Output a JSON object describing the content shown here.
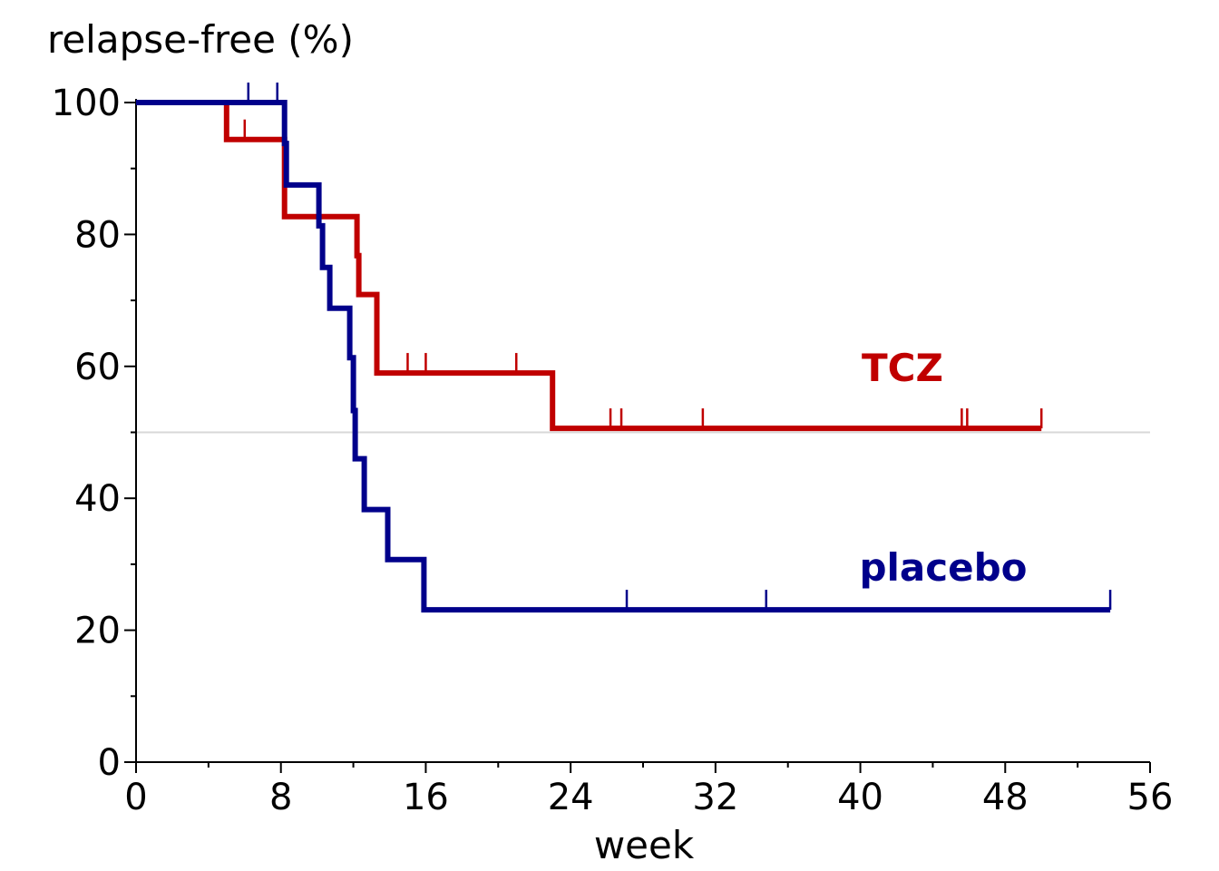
{
  "chart_data": {
    "type": "line",
    "title": "",
    "ylabel": "relapse-free (%)",
    "xlabel": "week",
    "xlim": [
      0,
      56
    ],
    "ylim": [
      0,
      100
    ],
    "x_ticks": [
      0,
      8,
      16,
      24,
      32,
      40,
      48,
      56
    ],
    "y_ticks": [
      0,
      20,
      40,
      60,
      80,
      100
    ],
    "reference_line_y": 50,
    "grid": false,
    "legend": "inline labels at right of curves",
    "series": [
      {
        "name": "TCZ",
        "color": "#c00000",
        "step_points": [
          [
            0,
            100
          ],
          [
            5,
            100
          ],
          [
            5,
            94.4
          ],
          [
            8.2,
            94.4
          ],
          [
            8.2,
            82.7
          ],
          [
            12,
            82.7
          ],
          [
            12,
            82.7
          ],
          [
            12.2,
            82.7
          ],
          [
            12.2,
            76.8
          ],
          [
            12.3,
            76.8
          ],
          [
            12.3,
            70.9
          ],
          [
            13.3,
            70.9
          ],
          [
            13.3,
            59
          ],
          [
            23,
            59
          ],
          [
            23,
            50.6
          ],
          [
            50,
            50.6
          ]
        ],
        "censor_times": [
          6,
          15,
          16,
          21,
          26.2,
          26.8,
          31.3,
          45.6,
          45.9,
          50
        ]
      },
      {
        "name": "placebo",
        "color": "#00008b",
        "step_points": [
          [
            0,
            100
          ],
          [
            8.2,
            100
          ],
          [
            8.2,
            93.8
          ],
          [
            8.3,
            93.8
          ],
          [
            8.3,
            87.5
          ],
          [
            10.1,
            87.5
          ],
          [
            10.1,
            81.3
          ],
          [
            10.3,
            81.3
          ],
          [
            10.3,
            75
          ],
          [
            10.7,
            75
          ],
          [
            10.7,
            68.8
          ],
          [
            11.8,
            68.8
          ],
          [
            11.8,
            61.3
          ],
          [
            12,
            61.3
          ],
          [
            12,
            53.3
          ],
          [
            12.1,
            53.3
          ],
          [
            12.1,
            46
          ],
          [
            12.6,
            46
          ],
          [
            12.6,
            38.3
          ],
          [
            13.9,
            38.3
          ],
          [
            13.9,
            30.7
          ],
          [
            15.9,
            30.7
          ],
          [
            15.9,
            23.1
          ],
          [
            53.8,
            23.1
          ]
        ],
        "censor_times": [
          6.2,
          7.8,
          27.1,
          34.8,
          53.8
        ]
      }
    ]
  }
}
